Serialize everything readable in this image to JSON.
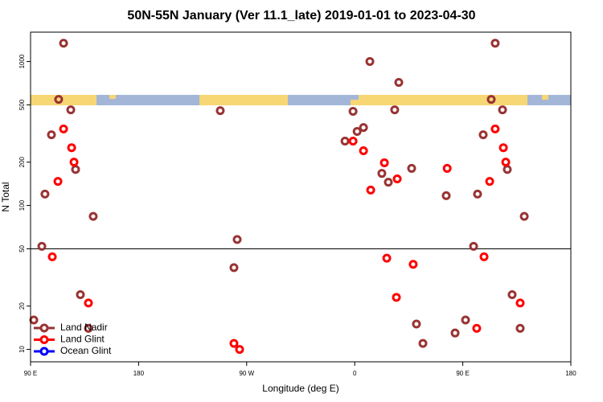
{
  "chart_data": {
    "type": "scatter",
    "title": "50N-55N January (Ver 11.1_late)   2019-01-01 to 2023-04-30",
    "x_label": "Longitude (deg E)",
    "y_label": "N Total",
    "log_y": true,
    "reference_line": 50,
    "legend": "lower left",
    "xlim": [
      90,
      540
    ],
    "xticks": [
      {
        "value": 90,
        "label": "90 E"
      },
      {
        "value": 180,
        "label": "180"
      },
      {
        "value": 270,
        "label": "90 W"
      },
      {
        "value": 360,
        "label": "0"
      },
      {
        "value": 450,
        "label": "90 E"
      },
      {
        "value": 540,
        "label": "180"
      }
    ],
    "ylim": [
      8.2,
      1600
    ],
    "yticks": [
      10,
      20,
      50,
      100,
      200,
      500,
      1000
    ],
    "series": [
      {
        "name": "Land Nadir",
        "color": "#993333",
        "x": [
          117.5,
          113.4,
          123.5,
          107.4,
          127.5,
          102,
          142.2,
          99.4,
          131.5,
          92.7,
          138.2,
          248,
          262.1,
          259.4,
          372.6,
          396.7,
          393.3,
          358.6,
          367.3,
          362,
          351.9,
          382.6,
          388,
          407.4,
          436.2,
          462.3,
          477,
          473.7,
          483.1,
          467,
          487.1,
          501.2,
          459,
          491.1,
          452.3,
          497.8,
          411.4,
          416.8,
          443.6
        ],
        "values": [
          1340,
          546,
          462,
          310,
          178,
          120,
          84,
          52,
          24,
          16,
          14,
          456,
          58,
          37,
          1000,
          716,
          462,
          451,
          348,
          327,
          280,
          167,
          145,
          181,
          117,
          120,
          1340,
          546,
          462,
          310,
          178,
          84,
          52,
          24,
          16,
          14,
          15,
          11,
          13
        ]
      },
      {
        "name": "Land Glint",
        "color": "#ff0000",
        "x": [
          117.5,
          124.2,
          126.2,
          112.8,
          108.1,
          138.2,
          259.4,
          264.1,
          358.6,
          367.3,
          384.7,
          373.3,
          395.4,
          437,
          472.4,
          477,
          483.8,
          485.8,
          386.7,
          408.7,
          394.7,
          467.7,
          497.8,
          461.6
        ],
        "values": [
          340,
          252,
          200,
          147,
          44,
          21,
          11,
          10,
          280,
          240,
          198,
          128,
          153,
          181,
          147,
          340,
          252,
          200,
          43,
          39,
          23,
          44,
          21,
          14
        ]
      },
      {
        "name": "Ocean Glint",
        "color": "#0000ff",
        "x": [],
        "values": []
      }
    ]
  }
}
